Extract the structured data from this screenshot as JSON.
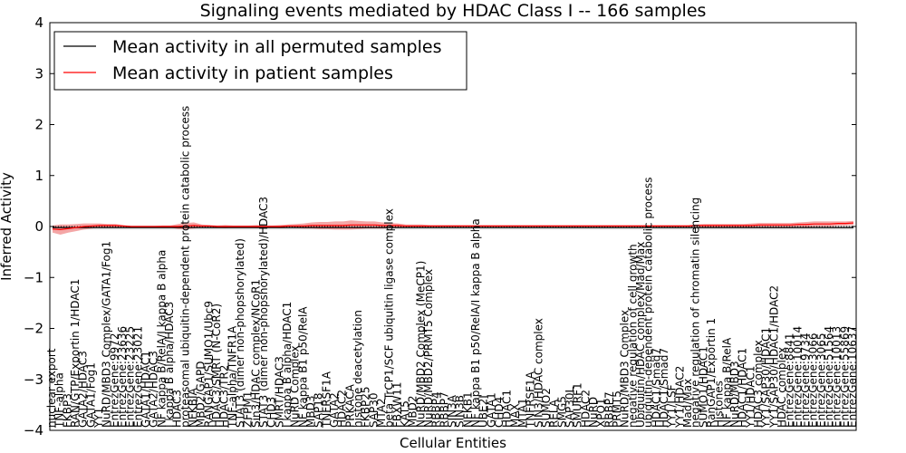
{
  "chart_data": {
    "type": "line",
    "title": "Signaling events mediated by HDAC Class I -- 166 samples",
    "xlabel": "Cellular Entities",
    "ylabel": "Inferred Activity",
    "ylim": [
      -4,
      4
    ],
    "yticks": [
      -4,
      -3,
      -2,
      -1,
      0,
      1,
      2,
      3,
      4
    ],
    "grid": false,
    "legend_position": "top-left",
    "colors": {
      "permuted": "#000000",
      "patient": "#ff0000",
      "patient_band": "#f08080",
      "permuted_band": "#c8c8c8"
    },
    "series": [
      {
        "name": "Mean activity in all permuted samples",
        "values": [
          -0.02,
          -0.02,
          -0.02,
          -0.02,
          -0.02,
          -0.02,
          -0.02,
          -0.02,
          -0.02,
          -0.02,
          -0.02,
          -0.02,
          -0.02,
          -0.02,
          -0.02,
          -0.02,
          -0.02,
          -0.02,
          -0.02,
          -0.02,
          -0.02,
          -0.02,
          -0.02,
          -0.02,
          -0.02,
          -0.02,
          -0.02,
          -0.02,
          -0.02,
          -0.02,
          -0.02,
          -0.02,
          -0.02,
          -0.02,
          -0.02,
          -0.02,
          -0.02,
          -0.02,
          -0.02,
          -0.02,
          -0.02,
          -0.02,
          -0.02,
          -0.02,
          -0.02,
          -0.02,
          -0.02,
          -0.02,
          -0.02,
          -0.02,
          -0.02,
          -0.02,
          -0.02,
          -0.02,
          -0.02,
          -0.02,
          -0.02,
          -0.02,
          -0.02,
          -0.02,
          -0.02,
          -0.02,
          -0.02,
          -0.02,
          -0.02,
          -0.02,
          -0.02,
          -0.02,
          -0.02,
          -0.02,
          -0.02,
          -0.02,
          -0.02,
          -0.02,
          -0.02,
          -0.02,
          -0.02,
          -0.02,
          -0.02,
          -0.02,
          -0.02,
          -0.02,
          -0.02,
          -0.02,
          -0.02,
          -0.02,
          -0.02,
          -0.02,
          -0.02,
          -0.02,
          -0.02,
          -0.02,
          -0.02,
          -0.02,
          -0.02,
          -0.02,
          -0.02,
          -0.02,
          -0.02,
          -0.02,
          -0.02,
          -0.02,
          -0.02
        ]
      },
      {
        "name": "Mean activity in patient samples",
        "values": [
          -0.05,
          -0.06,
          -0.04,
          -0.02,
          0.0,
          0.01,
          0.02,
          0.02,
          0.02,
          0.01,
          0.0,
          0.0,
          0.0,
          0.0,
          0.0,
          0.0,
          0.0,
          0.01,
          0.02,
          0.01,
          0.01,
          0.0,
          0.0,
          0.0,
          0.0,
          0.0,
          0.0,
          0.0,
          0.0,
          0.0,
          0.01,
          0.01,
          0.01,
          0.02,
          0.02,
          0.02,
          0.02,
          0.02,
          0.03,
          0.03,
          0.03,
          0.03,
          0.02,
          0.02,
          0.02,
          0.01,
          0.01,
          0.01,
          0.01,
          0.01,
          0.01,
          0.01,
          0.01,
          0.01,
          0.01,
          0.01,
          0.01,
          0.01,
          0.01,
          0.01,
          0.01,
          0.01,
          0.01,
          0.01,
          0.01,
          0.01,
          0.01,
          0.01,
          0.01,
          0.01,
          0.01,
          0.01,
          0.01,
          0.01,
          0.01,
          0.01,
          0.01,
          0.01,
          0.01,
          0.01,
          0.01,
          0.01,
          0.02,
          0.02,
          0.02,
          0.02,
          0.02,
          0.02,
          0.02,
          0.02,
          0.03,
          0.03,
          0.03,
          0.03,
          0.03,
          0.04,
          0.04,
          0.05,
          0.05,
          0.05,
          0.06,
          0.06,
          0.07
        ],
        "spread": [
          0.07,
          0.1,
          0.08,
          0.07,
          0.06,
          0.05,
          0.04,
          0.03,
          0.03,
          0.02,
          0.01,
          0.01,
          0.01,
          0.01,
          0.02,
          0.02,
          0.05,
          0.06,
          0.06,
          0.03,
          0.02,
          0.02,
          0.03,
          0.02,
          0.02,
          0.02,
          0.03,
          0.02,
          0.02,
          0.03,
          0.03,
          0.04,
          0.05,
          0.06,
          0.07,
          0.07,
          0.08,
          0.08,
          0.09,
          0.08,
          0.07,
          0.07,
          0.06,
          0.05,
          0.04,
          0.03,
          0.03,
          0.03,
          0.02,
          0.02,
          0.02,
          0.02,
          0.02,
          0.02,
          0.02,
          0.02,
          0.02,
          0.02,
          0.02,
          0.02,
          0.02,
          0.02,
          0.02,
          0.02,
          0.02,
          0.02,
          0.02,
          0.02,
          0.02,
          0.02,
          0.02,
          0.02,
          0.02,
          0.02,
          0.02,
          0.02,
          0.02,
          0.02,
          0.02,
          0.02,
          0.02,
          0.02,
          0.02,
          0.03,
          0.03,
          0.03,
          0.03,
          0.03,
          0.03,
          0.04,
          0.04,
          0.04,
          0.04,
          0.04,
          0.04,
          0.04,
          0.05,
          0.05,
          0.05,
          0.05,
          0.04,
          0.04,
          0.04
        ]
      }
    ],
    "categories": [
      "nuclear export",
      "TNF-alpha",
      "FKBP3",
      "RAN/GTP/Exportin 1/HDAC1",
      "GATA2/HDAC3",
      "GATA1/Fog1",
      "YY1",
      "NuRD/MBD3 Complex/GATA1/Fog1",
      "EntrezGene:9972",
      "EntrezGene:23636",
      "EntrezGene:23225",
      "EntrezGene:23021",
      "GATA1/HDAC1",
      "GATA2/HDAC3",
      "NF kappa B/RelA/I kappa B alpha",
      "I kappa B alpha/HDAC3",
      "HDAC3",
      "proteasomal ubiquitin-dependent protein catabolic process",
      "NFKBIA",
      "MBD2/GAPD",
      "RANGAP1/SUMO1/Ubc9",
      "HDAC3/SMRT (N-CoR2)",
      "HDAC3/TR2",
      "TNF-alpha/TNFR1A",
      "STAT3 (dimer non-phopshorylated)",
      "ZFPM1",
      "Sin3/HDAC complex/NCoR1",
      "STAT3 (dimer non-phopshorylated)/HDAC3",
      "CHD3",
      "SMRT/HDAC3",
      "I kappa B alpha/HDAC1",
      "NuRD Complex",
      "NF kappa B1 p50/RelA",
      "MBD3",
      "SAP18",
      "TNFRSF1A",
      "GATA2",
      "HDAC2",
      "PRKACA",
      "histone deacetylation",
      "FKBP25",
      "SAP30",
      "MTA2",
      "beta TrCP1/SCF ubiquitin ligase complex",
      "FBXW11",
      "KAT5",
      "MBD2",
      "NuRD/MBD2 Complex (MeCP1)",
      "NuRD/MBD2/PRMT5 Complex",
      "RBBP4",
      "RBBP7",
      "SIN3A",
      "SIN3B",
      "NFKB1",
      "NF kappa B1 p50/RelA/I kappa B alpha",
      "UBE2I",
      "GATA1",
      "CHD4",
      "HDAC1",
      "MAX",
      "MTA1",
      "TNFRSF1A",
      "SIN3/HDAC complex",
      "SUMO2",
      "RELA",
      "SMG5",
      "SAP30L",
      "SMURF1",
      "HDAC2",
      "NuRD",
      "XPO1",
      "RBBP7",
      "PRMT5",
      "NuRD/MBD3 Complex",
      "negative regulation of cell growth",
      "Ubiquitin/HDAC complex/Mad/Max",
      "ubiquitin-dependent protein catabolic process",
      "HDAC1/Smad7",
      "HDAC1/Smad7",
      "YY1/LSF",
      "YY1/HDAC2",
      "Mad/Max",
      "negative regulation of chromatin silencing",
      "SUMO1/HDAC1",
      "RanGAP1/Exportin 1",
      "Histones",
      "NF kappa B/RelA",
      "NuRD/MBD3",
      "HDAC1/HDAC1",
      "YY1/HDAC1",
      "HDAC3 complex",
      "YY1/SAP30/HDAC1",
      "YY1/SAP30/HDAC1/HDAC2",
      "HDAC complex",
      "EntrezGene:8841",
      "EntrezGene:10014",
      "EntrezGene:9734",
      "EntrezGene:3066",
      "EntrezGene:3065",
      "EntrezGene:51564",
      "EntrezGene:10013",
      "EntrezGene:55869",
      "EntrezGene:10637"
    ]
  },
  "legend": {
    "permuted_label": "Mean activity in all permuted samples",
    "patient_label": "Mean activity in patient samples"
  }
}
